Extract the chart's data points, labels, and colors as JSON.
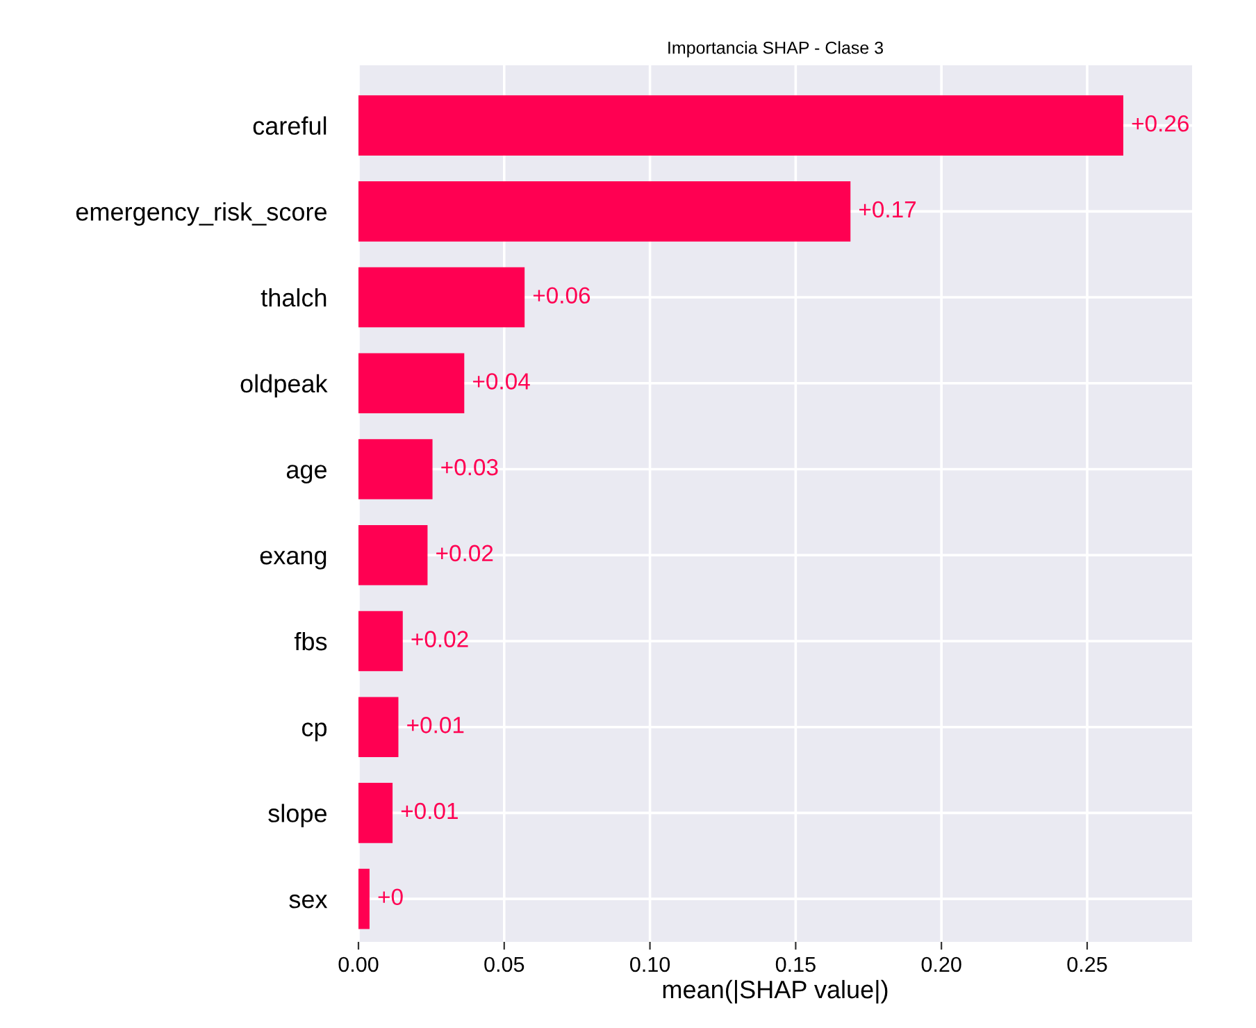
{
  "chart_data": {
    "type": "bar",
    "orientation": "horizontal",
    "title": "Importancia SHAP - Clase 3",
    "xlabel": "mean(|SHAP value|)",
    "categories": [
      "careful",
      "emergency_risk_score",
      "thalch",
      "oldpeak",
      "age",
      "exang",
      "fbs",
      "cp",
      "slope",
      "sex"
    ],
    "values": [
      0.2624,
      0.1688,
      0.057,
      0.0363,
      0.0254,
      0.0237,
      0.0152,
      0.0137,
      0.0117,
      0.0038
    ],
    "value_labels": [
      "+0.26",
      "+0.17",
      "+0.06",
      "+0.04",
      "+0.03",
      "+0.02",
      "+0.02",
      "+0.01",
      "+0.01",
      "+0"
    ],
    "color": "#ff0052",
    "xlim": [
      0,
      0.286
    ],
    "xticks": [
      {
        "value": 0,
        "label": "0.00"
      },
      0.05,
      {
        "value": 0.1,
        "label": "0.10"
      },
      0.15,
      {
        "value": 0.2,
        "label": "0.20"
      },
      0.25
    ],
    "grid": true
  }
}
